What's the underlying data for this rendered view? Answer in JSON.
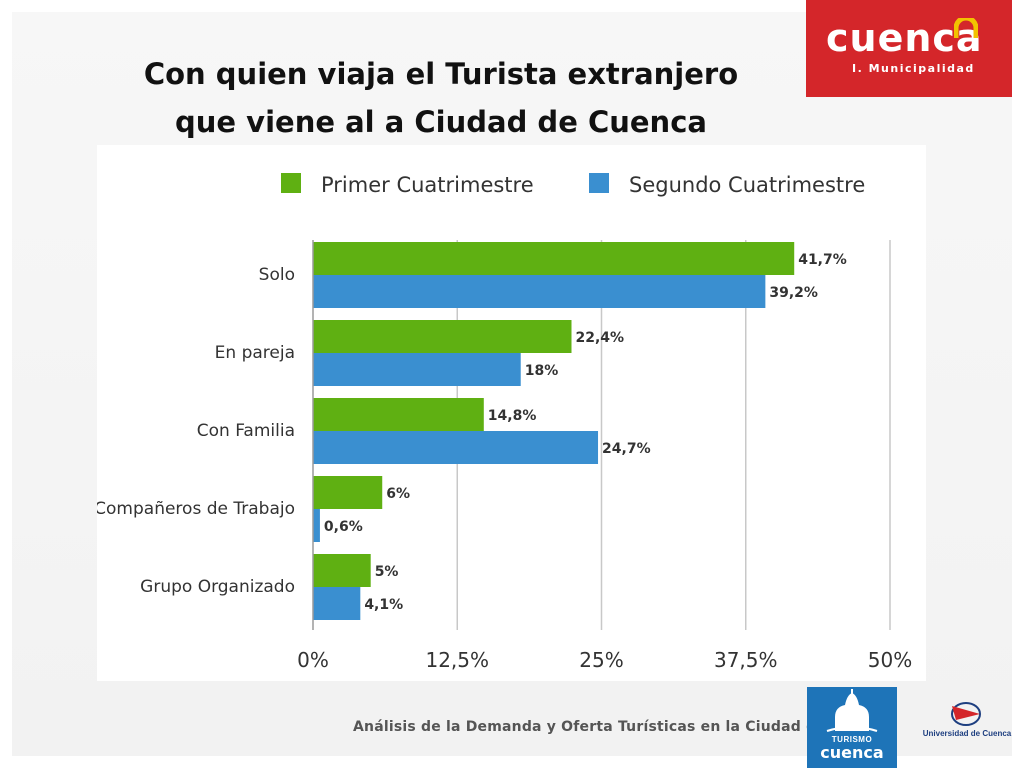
{
  "title": {
    "line1": "Con quien viaja el Turista extranjero",
    "line2": "que viene al a Ciudad de Cuenca"
  },
  "logo": {
    "name": "cuenca",
    "subtitle": "I. Municipalidad",
    "brand_color": "#d4262a"
  },
  "footer": {
    "text": "Análisis de la Demanda y Oferta Turísticas en la Ciudad de Cuenca",
    "turismo_line1": "TURISMO",
    "turismo_line2": "cuenca",
    "university": "Universidad de Cuenca"
  },
  "chart_data": {
    "type": "bar",
    "orientation": "horizontal",
    "categories": [
      "Solo",
      "En pareja",
      "Con Familia",
      "Compañeros de Trabajo",
      "Grupo Organizado"
    ],
    "series": [
      {
        "name": "Primer Cuatrimestre",
        "color": "#5fb012",
        "values": [
          41.7,
          22.4,
          14.8,
          6,
          5
        ],
        "labels": [
          "41,7%",
          "22,4%",
          "14,8%",
          "6%",
          "5%"
        ]
      },
      {
        "name": "Segundo Cuatrimestre",
        "color": "#3a8fd0",
        "values": [
          39.2,
          18,
          24.7,
          0.6,
          4.1
        ],
        "labels": [
          "39,2%",
          "18%",
          "24,7%",
          "0,6%",
          "4,1%"
        ]
      }
    ],
    "xlim": [
      0,
      50
    ],
    "xticks": [
      0,
      12.5,
      25,
      37.5,
      50
    ],
    "xtick_labels": [
      "0%",
      "12,5%",
      "25%",
      "37,5%",
      "50%"
    ],
    "grid": true,
    "legend": "top"
  }
}
